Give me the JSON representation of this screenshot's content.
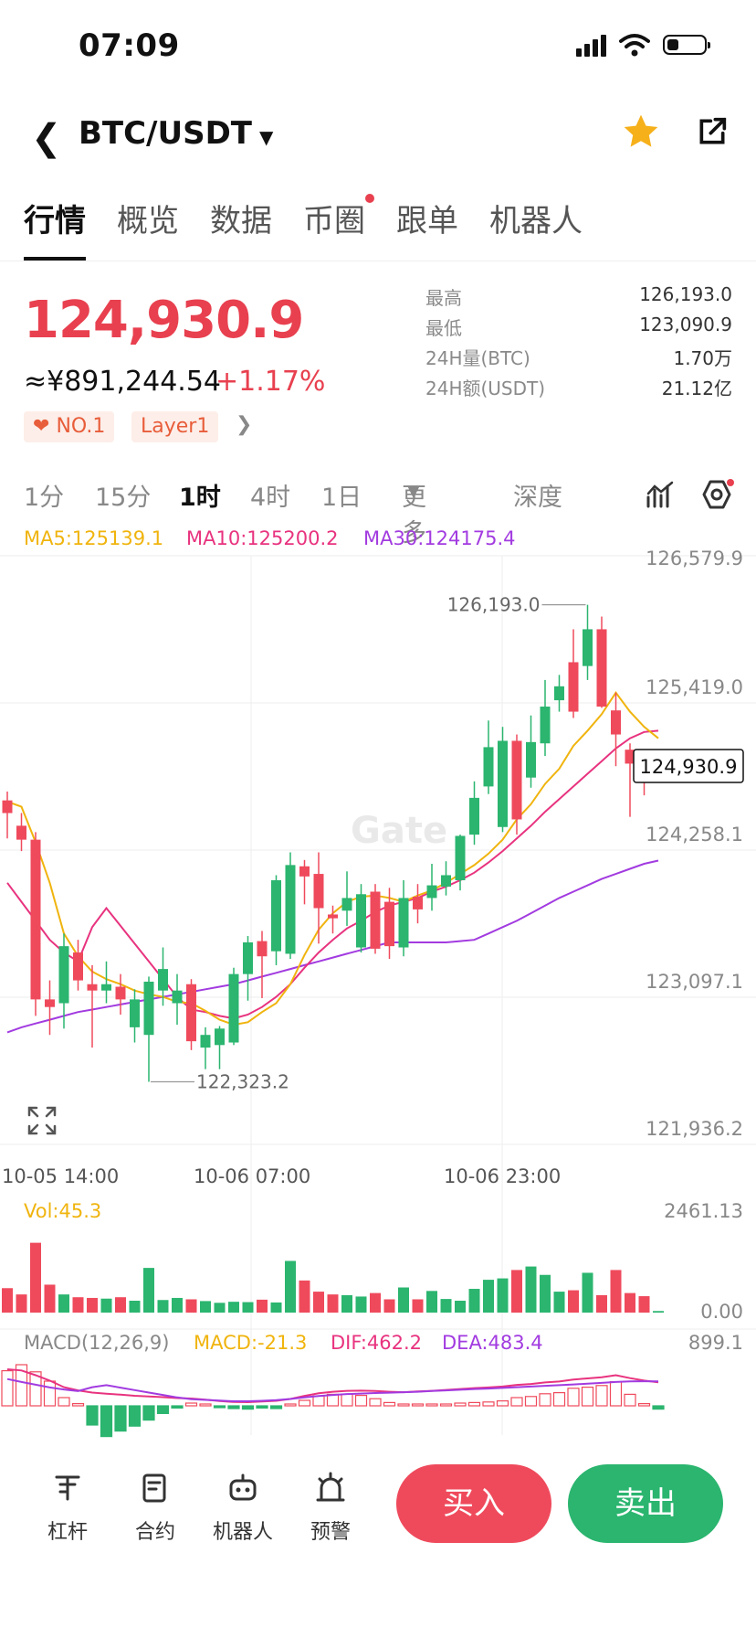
{
  "status_bar": {
    "time": "07:09"
  },
  "header": {
    "pair": "BTC/USDT"
  },
  "tabs": [
    "行情",
    "概览",
    "数据",
    "币圈",
    "跟单",
    "机器人"
  ],
  "ticker": {
    "last_price": "124,930.9",
    "cny_price": "≈¥891,244.54",
    "change_pct": "+1.17%",
    "tags": [
      "NO.1",
      "Layer1"
    ],
    "stats": [
      {
        "label": "最高",
        "value": "126,193.0"
      },
      {
        "label": "最低",
        "value": "123,090.9"
      },
      {
        "label": "24H量(BTC)",
        "value": "1.70万"
      },
      {
        "label": "24H额(USDT)",
        "value": "21.12亿"
      }
    ]
  },
  "intervals": [
    "1分",
    "15分",
    "1时",
    "4时",
    "1日",
    "更多",
    "深度"
  ],
  "selected_interval": "1时",
  "chart_data": {
    "type": "candlestick",
    "ma_legend": {
      "ma5": "MA5:125139.1",
      "ma10": "MA10:125200.2",
      "ma30": "MA30:124175.4"
    },
    "price_axis": [
      "126,579.9",
      "125,419.0",
      "124,258.1",
      "123,097.1",
      "121,936.2"
    ],
    "ylim": [
      121936.2,
      126579.9
    ],
    "time_labels": [
      "10-05 14:00",
      "10-06 07:00",
      "10-06 23:00"
    ],
    "high_label": "126,193.0",
    "low_label": "122,323.2",
    "current_price": "124,930.9",
    "watermark": "Gate",
    "candles": [
      [
        124650,
        124550,
        124720,
        124350
      ],
      [
        124450,
        124340,
        124550,
        124250
      ],
      [
        124340,
        123080,
        124400,
        122950
      ],
      [
        123080,
        123020,
        123230,
        122800
      ],
      [
        123050,
        123500,
        123600,
        122850
      ],
      [
        123450,
        123230,
        123550,
        123150
      ],
      [
        123200,
        123150,
        123350,
        122700
      ],
      [
        123150,
        123200,
        123380,
        123050
      ],
      [
        123180,
        123080,
        123280,
        122960
      ],
      [
        122860,
        123080,
        123160,
        122740
      ],
      [
        122800,
        123220,
        123260,
        122430
      ],
      [
        123150,
        123320,
        123490,
        123030
      ],
      [
        123050,
        123150,
        123280,
        122880
      ],
      [
        123200,
        122750,
        123240,
        122680
      ],
      [
        122700,
        122800,
        122860,
        122530
      ],
      [
        122720,
        122850,
        122870,
        122530
      ],
      [
        122740,
        123280,
        123330,
        122720
      ],
      [
        123280,
        123530,
        123580,
        123070
      ],
      [
        123540,
        123420,
        123620,
        123090
      ],
      [
        123460,
        124020,
        124060,
        123350
      ],
      [
        123440,
        124140,
        124240,
        123400
      ],
      [
        124130,
        124050,
        124180,
        123830
      ],
      [
        124070,
        123800,
        124240,
        123520
      ],
      [
        123750,
        123720,
        123820,
        123600
      ],
      [
        123780,
        123880,
        124090,
        123660
      ],
      [
        123490,
        123910,
        123990,
        123450
      ],
      [
        123930,
        123480,
        123990,
        123440
      ],
      [
        123850,
        123500,
        123960,
        123400
      ],
      [
        123490,
        123880,
        124020,
        123420
      ],
      [
        123890,
        123790,
        123990,
        123680
      ],
      [
        123880,
        123980,
        124150,
        123780
      ],
      [
        123970,
        124060,
        124170,
        123900
      ],
      [
        124020,
        124370,
        124380,
        123940
      ],
      [
        124380,
        124670,
        124800,
        124300
      ],
      [
        124760,
        125070,
        125280,
        124700
      ],
      [
        124440,
        125120,
        125230,
        124400
      ],
      [
        125120,
        124500,
        125170,
        124380
      ],
      [
        124830,
        125110,
        125320,
        124750
      ],
      [
        125100,
        125390,
        125600,
        125000
      ],
      [
        125440,
        125550,
        125640,
        125350
      ],
      [
        125740,
        125350,
        126000,
        125300
      ],
      [
        125710,
        126000,
        126193,
        125600
      ],
      [
        126000,
        125390,
        126100,
        125380
      ],
      [
        125360,
        125170,
        125500,
        124920
      ],
      [
        125050,
        124940,
        125100,
        124520
      ],
      [
        124970,
        124870,
        125000,
        124690
      ],
      [
        124920,
        124930,
        125050,
        124800
      ]
    ],
    "ma5": [
      124640,
      124600,
      124320,
      124000,
      123600,
      123420,
      123300,
      123240,
      123200,
      123150,
      123120,
      123100,
      123060,
      123050,
      122990,
      122920,
      122880,
      122900,
      122980,
      123050,
      123200,
      123430,
      123630,
      123760,
      123850,
      123890,
      123900,
      123880,
      123850,
      123900,
      123940,
      124000,
      124070,
      124140,
      124230,
      124340,
      124500,
      124620,
      124780,
      124900,
      125080,
      125200,
      125330,
      125500,
      125350,
      125230,
      125140
    ],
    "ma10": [
      124000,
      123850,
      123700,
      123550,
      123450,
      123380,
      123650,
      123800,
      123660,
      123520,
      123380,
      123240,
      123100,
      123000,
      122980,
      122950,
      122930,
      122960,
      123020,
      123100,
      123200,
      123330,
      123450,
      123550,
      123640,
      123700,
      123770,
      123820,
      123850,
      123880,
      123930,
      123970,
      124020,
      124080,
      124160,
      124250,
      124350,
      124450,
      124560,
      124660,
      124760,
      124860,
      124960,
      125060,
      125140,
      125190,
      125200
    ],
    "ma30": [
      122820,
      122860,
      122890,
      122920,
      122950,
      122980,
      123000,
      123020,
      123040,
      123060,
      123080,
      123100,
      123120,
      123140,
      123160,
      123180,
      123200,
      123230,
      123260,
      123290,
      123320,
      123350,
      123380,
      123410,
      123440,
      123470,
      123500,
      123530,
      123530,
      123530,
      123530,
      123530,
      123540,
      123550,
      123600,
      123650,
      123700,
      123760,
      123820,
      123880,
      123930,
      123980,
      124030,
      124070,
      124110,
      124150,
      124175
    ],
    "volume": {
      "legend": "Vol:45.3",
      "axis_max": "2461.13",
      "axis_min": "0.00",
      "values": [
        700,
        520,
        2000,
        800,
        520,
        440,
        420,
        400,
        440,
        340,
        1280,
        360,
        420,
        380,
        330,
        280,
        310,
        300,
        370,
        290,
        1480,
        920,
        600,
        520,
        500,
        460,
        560,
        380,
        720,
        380,
        620,
        390,
        340,
        680,
        940,
        980,
        1220,
        1320,
        1080,
        600,
        640,
        1140,
        500,
        1220,
        560,
        470,
        45
      ]
    },
    "macd": {
      "legend_title": "MACD(12,26,9)",
      "legend_macd": "MACD:-21.3",
      "legend_dif": "DIF:462.2",
      "legend_dea": "DEA:483.4",
      "axis_top": "899.1"
    }
  },
  "bottom_nav": [
    "杠杆",
    "合约",
    "机器人",
    "预警"
  ],
  "actions": {
    "buy": "买入",
    "sell": "卖出"
  },
  "colors": {
    "up": "#2bb56f",
    "down": "#ef4a5c",
    "ma5": "#f0b40e",
    "ma10": "#e8337f",
    "ma30": "#a23be0"
  }
}
